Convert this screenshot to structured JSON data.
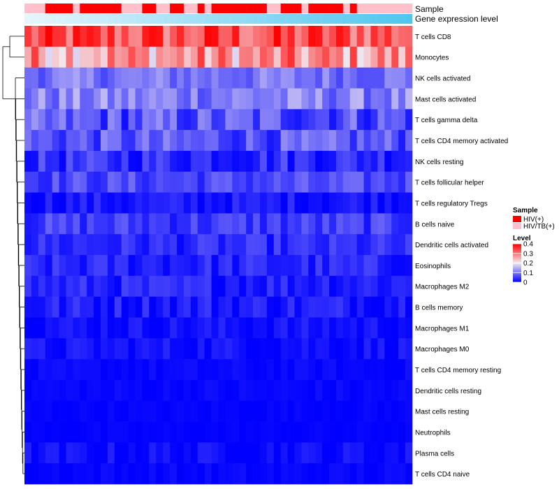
{
  "chart_data": {
    "type": "heatmap",
    "title": "",
    "annotation_labels": [
      "Sample",
      "Gene expression level"
    ],
    "sample_groups": [
      "HIV/TB(+)",
      "HIV/TB(+)",
      "HIV/TB(+)",
      "HIV(+)",
      "HIV(+)",
      "HIV(+)",
      "HIV(+)",
      "HIV/TB(+)",
      "HIV(+)",
      "HIV(+)",
      "HIV(+)",
      "HIV(+)",
      "HIV(+)",
      "HIV(+)",
      "HIV/TB(+)",
      "HIV/TB(+)",
      "HIV/TB(+)",
      "HIV(+)",
      "HIV(+)",
      "HIV/TB(+)",
      "HIV/TB(+)",
      "HIV(+)",
      "HIV(+)",
      "HIV/TB(+)",
      "HIV/TB(+)",
      "HIV(+)",
      "HIV/TB(+)",
      "HIV(+)",
      "HIV(+)",
      "HIV(+)",
      "HIV(+)",
      "HIV(+)",
      "HIV(+)",
      "HIV(+)",
      "HIV(+)",
      "HIV/TB(+)",
      "HIV/TB(+)",
      "HIV(+)",
      "HIV(+)",
      "HIV(+)",
      "HIV/TB(+)",
      "HIV(+)",
      "HIV(+)",
      "HIV(+)",
      "HIV(+)",
      "HIV(+)",
      "HIV/TB(+)",
      "HIV(+)",
      "HIV/TB(+)",
      "HIV/TB(+)",
      "HIV/TB(+)",
      "HIV/TB(+)",
      "HIV/TB(+)",
      "HIV/TB(+)",
      "HIV/TB(+)",
      "HIV/TB(+)"
    ],
    "rows": [
      {
        "name": "T cells CD8",
        "base": 0.33,
        "var": 0.08
      },
      {
        "name": "Monocytes",
        "base": 0.27,
        "var": 0.09
      },
      {
        "name": "NK cells activated",
        "base": 0.1,
        "var": 0.04
      },
      {
        "name": "Mast cells activated",
        "base": 0.11,
        "var": 0.05
      },
      {
        "name": "T cells gamma delta",
        "base": 0.07,
        "var": 0.06
      },
      {
        "name": "T cells CD4 memory activated",
        "base": 0.07,
        "var": 0.05
      },
      {
        "name": "NK cells resting",
        "base": 0.04,
        "var": 0.04
      },
      {
        "name": "T cells follicular helper",
        "base": 0.06,
        "var": 0.035
      },
      {
        "name": "T cells regulatory  Tregs",
        "base": 0.02,
        "var": 0.025
      },
      {
        "name": "B cells naive",
        "base": 0.05,
        "var": 0.035
      },
      {
        "name": "Dendritic cells activated",
        "base": 0.035,
        "var": 0.03
      },
      {
        "name": "Eosinophils",
        "base": 0.03,
        "var": 0.03
      },
      {
        "name": "Macrophages M2",
        "base": 0.03,
        "var": 0.03
      },
      {
        "name": "B cells memory",
        "base": 0.025,
        "var": 0.03
      },
      {
        "name": "Macrophages M1",
        "base": 0.015,
        "var": 0.02
      },
      {
        "name": "Macrophages M0",
        "base": 0.015,
        "var": 0.02
      },
      {
        "name": "T cells CD4 memory resting",
        "base": 0.005,
        "var": 0.01
      },
      {
        "name": "Dendritic cells resting",
        "base": 0.005,
        "var": 0.01
      },
      {
        "name": "Mast cells resting",
        "base": 0.003,
        "var": 0.006
      },
      {
        "name": "Neutrophils",
        "base": 0.002,
        "var": 0.005
      },
      {
        "name": "Plasma cells",
        "base": 0.01,
        "var": 0.02
      },
      {
        "name": "T cells CD4 naive",
        "base": 0.004,
        "var": 0.01
      }
    ],
    "n_columns": 56,
    "legend_sample": {
      "title": "Sample",
      "entries": [
        {
          "label": "HIV(+)",
          "color": "#ff0000"
        },
        {
          "label": "HIV/TB(+)",
          "color": "#ffc0cb"
        }
      ]
    },
    "legend_level": {
      "title": "Level",
      "ticks": [
        "0.4",
        "0.3",
        "0.2",
        "0.1",
        "0"
      ],
      "tick_values": [
        0.4,
        0.3,
        0.2,
        0.1,
        0
      ],
      "range": [
        0,
        0.4
      ]
    },
    "colors": {
      "low": "#0000ff",
      "mid": "#f2eaf0",
      "high": "#ff0000",
      "expr_light": "#e6f5fb",
      "expr_dark": "#4fc6ef"
    }
  }
}
